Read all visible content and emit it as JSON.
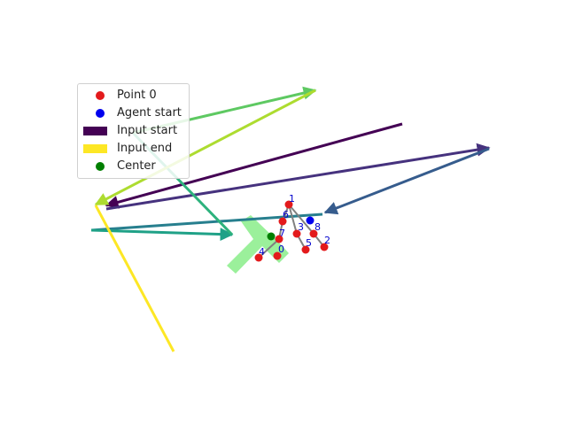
{
  "legend": {
    "items": [
      {
        "label": "Point 0",
        "kind": "dot",
        "color": "#e31a1c"
      },
      {
        "label": "Agent start",
        "kind": "dot",
        "color": "#0000ee"
      },
      {
        "label": "Input start",
        "kind": "bar",
        "color": "#440154"
      },
      {
        "label": "Input end",
        "kind": "bar",
        "color": "#fde725"
      },
      {
        "label": "Center",
        "kind": "dot",
        "color": "#007f00"
      }
    ]
  },
  "points": [
    {
      "label": "0"
    },
    {
      "label": "1"
    },
    {
      "label": "2"
    },
    {
      "label": "3"
    },
    {
      "label": "4"
    },
    {
      "label": "5"
    },
    {
      "label": "6"
    },
    {
      "label": "7"
    },
    {
      "label": "8"
    }
  ],
  "colors": {
    "point": "#e31a1c",
    "agent": "#0000ee",
    "center": "#007f00",
    "shape": "#90ee90",
    "skeleton": "#808080"
  }
}
